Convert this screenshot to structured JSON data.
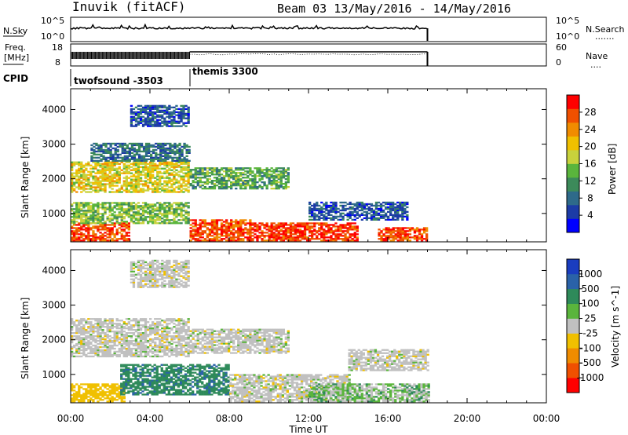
{
  "header": {
    "station": "Inuvik (fitACF)",
    "beam_date": "Beam 03 13/May/2016 - 14/May/2016"
  },
  "nsky_panel": {
    "left_label": "N.Sky",
    "left_ticks": [
      "10^5",
      "10^0"
    ],
    "right_ticks": [
      "10^5",
      "10^0"
    ],
    "right_label": "N.Search",
    "right_legend": "......."
  },
  "freq_panel": {
    "left_label_1": "Freq.",
    "left_label_2": "[MHz]",
    "left_ticks": [
      "18",
      "8"
    ],
    "right_ticks": [
      "60",
      "0"
    ],
    "right_label": "Nave",
    "right_legend": "...."
  },
  "cpid": {
    "label": "CPID",
    "programs": [
      "twofsound -3503",
      "themis 3300"
    ]
  },
  "time_axis": {
    "labels": [
      "00:00",
      "04:00",
      "08:00",
      "12:00",
      "16:00",
      "20:00",
      "00:00"
    ],
    "title": "Time UT"
  },
  "range_axis": {
    "title": "Slant Range [km]",
    "ticks": [
      "1000",
      "2000",
      "3000",
      "4000"
    ]
  },
  "power_colorbar": {
    "title": "Power [dB]",
    "labels": [
      "4",
      "8",
      "12",
      "16",
      "20",
      "24",
      "28"
    ],
    "colors": [
      "#0000ff",
      "#1c3ba6",
      "#2e6a8a",
      "#3c8a5a",
      "#5ab53c",
      "#c8d23c",
      "#f0c000",
      "#f08c00",
      "#f05000",
      "#ff0000"
    ]
  },
  "velocity_colorbar": {
    "title": "Velocity [m s^-1]",
    "labels": [
      "1000",
      "500",
      "100",
      "25",
      "-25",
      "-100",
      "-500",
      "-1000"
    ],
    "colors": [
      "#1a3dbf",
      "#2a62a8",
      "#2e8a5a",
      "#5ab53c",
      "#c0c0c0",
      "#f0c000",
      "#f08c00",
      "#f05000",
      "#ff0000"
    ]
  },
  "chart_data": [
    {
      "type": "heatmap",
      "title": "Power [dB]",
      "xlabel": "Time UT",
      "ylabel": "Slant Range [km]",
      "xlim": [
        0,
        24
      ],
      "ylim": [
        180,
        4600
      ],
      "regions": [
        {
          "t": [
            0,
            3
          ],
          "r": [
            200,
            700
          ],
          "power": 26
        },
        {
          "t": [
            0,
            6
          ],
          "r": [
            700,
            1300
          ],
          "power": 14
        },
        {
          "t": [
            0,
            6
          ],
          "r": [
            1600,
            2500
          ],
          "power": 18
        },
        {
          "t": [
            1,
            6
          ],
          "r": [
            2500,
            3000
          ],
          "power": 8
        },
        {
          "t": [
            3,
            6
          ],
          "r": [
            3500,
            4100
          ],
          "power": 6
        },
        {
          "t": [
            6,
            11
          ],
          "r": [
            1700,
            2300
          ],
          "power": 12
        },
        {
          "t": [
            6,
            9
          ],
          "r": [
            200,
            800
          ],
          "power": 26
        },
        {
          "t": [
            9,
            14.5
          ],
          "r": [
            200,
            700
          ],
          "power": 27
        },
        {
          "t": [
            12,
            17
          ],
          "r": [
            800,
            1300
          ],
          "power": 6
        },
        {
          "t": [
            15.5,
            18
          ],
          "r": [
            200,
            600
          ],
          "power": 26
        }
      ]
    },
    {
      "type": "heatmap",
      "title": "Velocity [m s^-1]",
      "xlabel": "Time UT",
      "ylabel": "Slant Range [km]",
      "xlim": [
        0,
        24
      ],
      "ylim": [
        180,
        4600
      ],
      "regions": [
        {
          "t": [
            0,
            2.7
          ],
          "r": [
            200,
            700
          ],
          "velocity": -60
        },
        {
          "t": [
            2.5,
            8
          ],
          "r": [
            400,
            1300
          ],
          "velocity": 80
        },
        {
          "t": [
            0,
            6
          ],
          "r": [
            1500,
            2600
          ],
          "velocity": 0
        },
        {
          "t": [
            3,
            6
          ],
          "r": [
            3500,
            4300
          ],
          "velocity": 0
        },
        {
          "t": [
            6,
            11
          ],
          "r": [
            1600,
            2300
          ],
          "velocity": 0
        },
        {
          "t": [
            8,
            14
          ],
          "r": [
            200,
            1000
          ],
          "velocity": 0
        },
        {
          "t": [
            12,
            18
          ],
          "r": [
            200,
            700
          ],
          "velocity": 30
        },
        {
          "t": [
            14,
            18
          ],
          "r": [
            1100,
            1700
          ],
          "velocity": 0
        }
      ]
    }
  ]
}
